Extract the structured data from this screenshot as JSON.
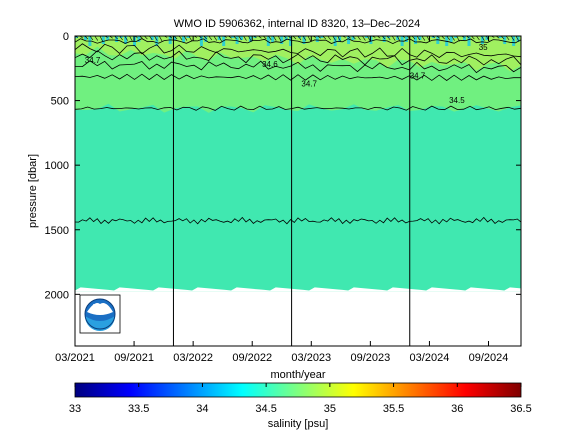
{
  "chart_data": {
    "type": "heatmap",
    "title": "WMO ID 5906362, internal ID 8320, 13–Dec–2024",
    "xlabel": "month/year",
    "ylabel": "pressure [dbar]",
    "colorbar_label": "salinity [psu]",
    "x_ticks": [
      "03/2021",
      "09/2021",
      "03/2022",
      "09/2022",
      "03/2023",
      "09/2023",
      "03/2024",
      "09/2024"
    ],
    "y_ticks": [
      0,
      500,
      1000,
      1500,
      2000
    ],
    "ylim": [
      2400,
      0
    ],
    "colorbar_ticks": [
      33,
      33.5,
      34,
      34.5,
      35,
      35.5,
      36,
      36.5
    ],
    "colorbar_range": [
      33,
      36.5
    ],
    "colormap": [
      "#00007f",
      "#0000ff",
      "#007fff",
      "#00ffff",
      "#7fff7f",
      "#ffff00",
      "#ff7f00",
      "#ff0000",
      "#7f0000"
    ],
    "field_colors": {
      "deep_water": "#40e8b0",
      "intermediate": "#70f080",
      "upper": "#a0f060",
      "surface_mix": "#30d0d0",
      "no_data": "#ffffff"
    },
    "year_boundaries": [
      "2022-01",
      "2023-01",
      "2024-01"
    ],
    "contour_labels": [
      {
        "text": "34.7",
        "time": "2021-04",
        "pressure": 210
      },
      {
        "text": "34.6",
        "time": "2022-10",
        "pressure": 240
      },
      {
        "text": "34.7",
        "time": "2023-02",
        "pressure": 390
      },
      {
        "text": "34.7",
        "time": "2024-01",
        "pressure": 330
      },
      {
        "text": "34.5",
        "time": "2024-05",
        "pressure": 520
      },
      {
        "text": "35",
        "time": "2024-08",
        "pressure": 110
      }
    ],
    "data_extent": {
      "start": "2021-03",
      "end": "2024-12",
      "max_pressure": 1980
    },
    "logo": "noaa-logo"
  }
}
